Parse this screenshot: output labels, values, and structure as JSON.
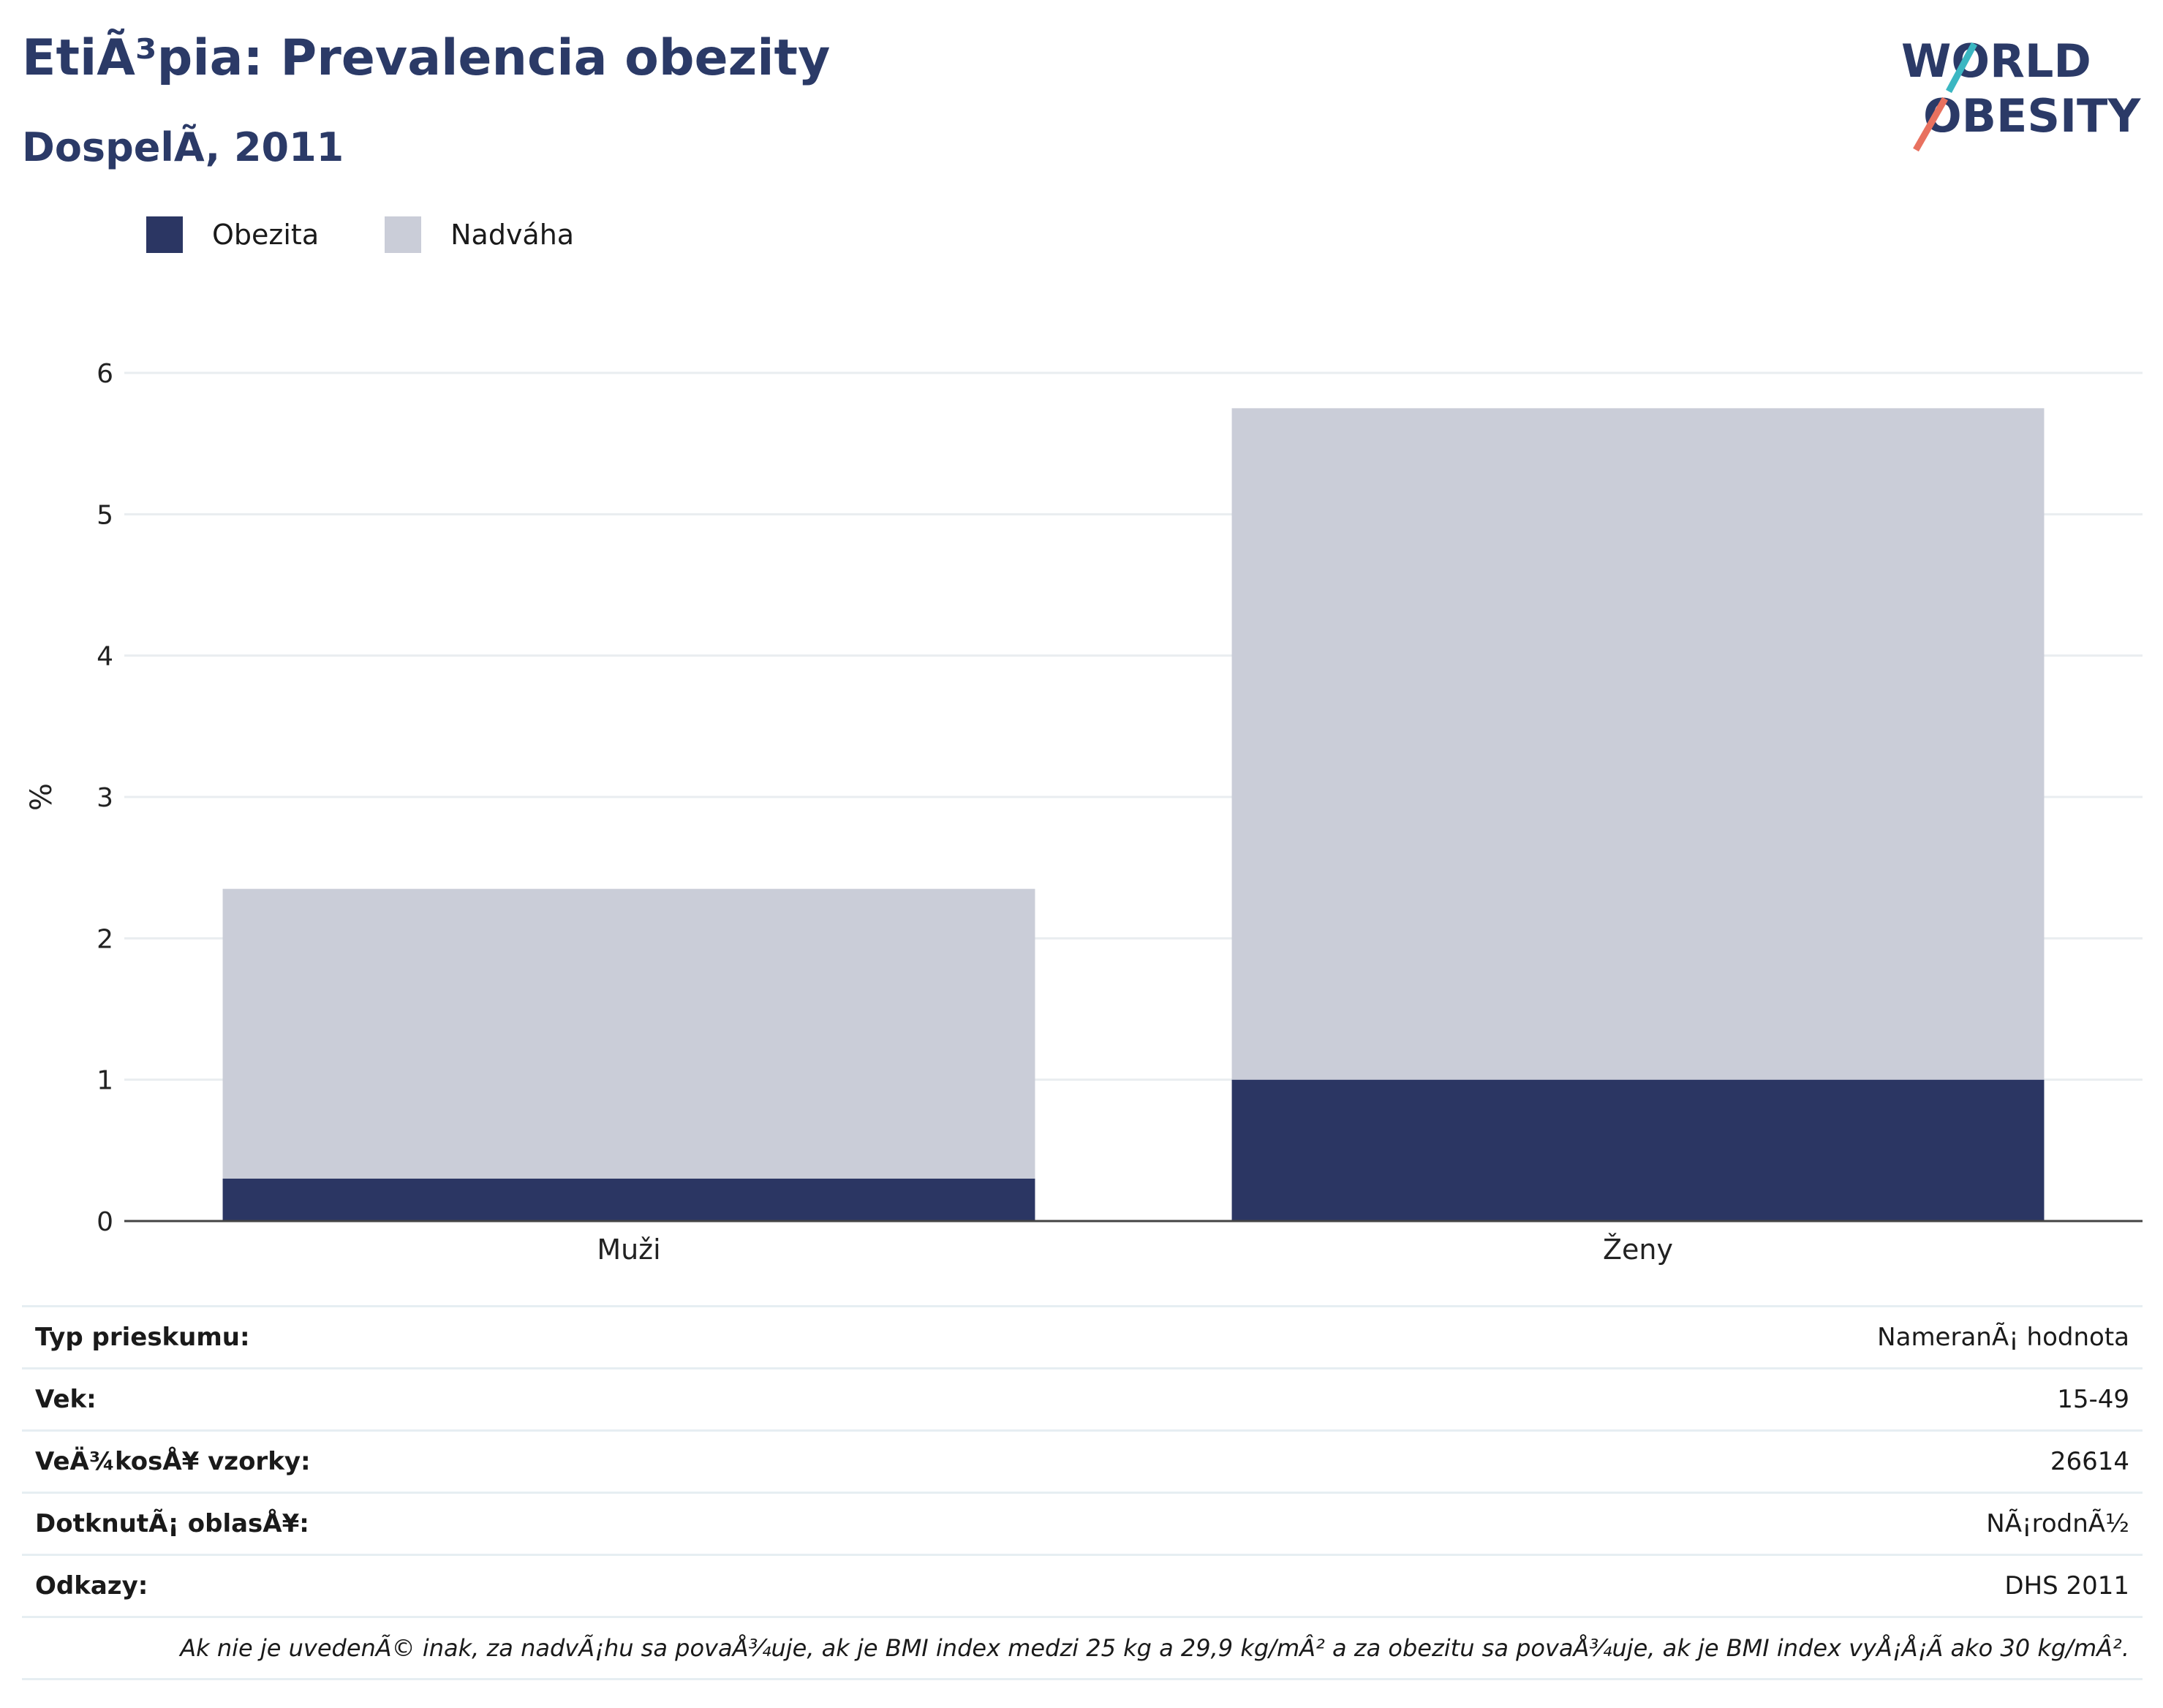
{
  "header": {
    "title": "EtiÃ³pia: Prevalencia obezity",
    "subtitle": "DospelÃ, 2011"
  },
  "logo": {
    "line1": "WORLD",
    "line2": "OBESITY"
  },
  "colors": {
    "obesity": "#2b3663",
    "overweight": "#cacdd8",
    "title": "#2b3a67",
    "grid": "#e9edf0"
  },
  "chart_data": {
    "type": "bar",
    "stacked": true,
    "categories": [
      "Muži",
      "Ženy"
    ],
    "series": [
      {
        "name": "Obezita",
        "values": [
          0.3,
          1.0
        ]
      },
      {
        "name": "Nadváha",
        "values": [
          2.05,
          4.75
        ]
      }
    ],
    "ylabel": "%",
    "ylim": [
      0,
      6
    ],
    "yticks": [
      "0",
      "1",
      "2",
      "3",
      "4",
      "5",
      "6"
    ],
    "legend": "top-left",
    "grid": true
  },
  "info": {
    "rows": [
      {
        "label": "Typ prieskumu:",
        "value": "NameranÃ¡ hodnota"
      },
      {
        "label": "Vek:",
        "value": "15-49"
      },
      {
        "label": "VeÄ¾kosÅ¥ vzorky:",
        "value": "26614"
      },
      {
        "label": "DotknutÃ¡ oblasÅ¥:",
        "value": "NÃ¡rodnÃ½"
      },
      {
        "label": "Odkazy:",
        "value": "DHS 2011"
      }
    ],
    "note": "Ak nie je uvedenÃ© inak, za nadvÃ¡hu sa povaÅ¾uje, ak je BMI index medzi 25 kg a 29,9 kg/mÂ² a za obezitu sa povaÅ¾uje, ak je BMI index vyÅ¡Å¡Ã ako 30 kg/mÂ²."
  }
}
